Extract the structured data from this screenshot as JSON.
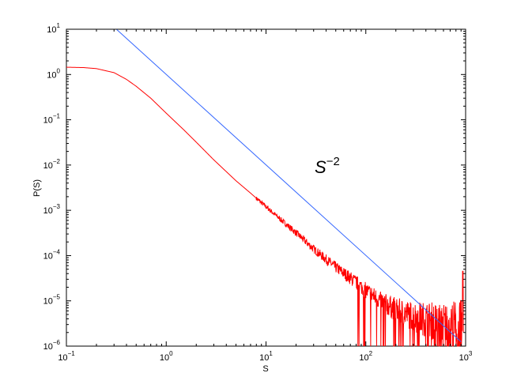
{
  "chart_data": {
    "type": "line",
    "xscale": "log",
    "yscale": "log",
    "xlim": [
      0.1,
      1000
    ],
    "ylim": [
      1e-06,
      10
    ],
    "xlabel": "S",
    "ylabel": "P(S)",
    "grid": false,
    "x_ticks": [
      {
        "base": "10",
        "exp": "−1"
      },
      {
        "base": "10",
        "exp": "0"
      },
      {
        "base": "10",
        "exp": "1"
      },
      {
        "base": "10",
        "exp": "2"
      },
      {
        "base": "10",
        "exp": "3"
      }
    ],
    "y_ticks": [
      {
        "base": "10",
        "exp": "−6"
      },
      {
        "base": "10",
        "exp": "−5"
      },
      {
        "base": "10",
        "exp": "−4"
      },
      {
        "base": "10",
        "exp": "−3"
      },
      {
        "base": "10",
        "exp": "−2"
      },
      {
        "base": "10",
        "exp": "−1"
      },
      {
        "base": "10",
        "exp": "0"
      },
      {
        "base": "10",
        "exp": "1"
      }
    ],
    "annotation": {
      "base": "S",
      "exp": "−2"
    },
    "series": [
      {
        "color": "#ff0000",
        "style": "noisy",
        "x": [
          0.1,
          0.15,
          0.2,
          0.3,
          0.4,
          0.5,
          0.7,
          1.0,
          1.5,
          2.0,
          3.0,
          5.0,
          7.0,
          10,
          15,
          20,
          30,
          50,
          70,
          100,
          150,
          200,
          300,
          500,
          700,
          950
        ],
        "y": [
          1.45,
          1.42,
          1.35,
          1.1,
          0.78,
          0.55,
          0.3,
          0.14,
          0.06,
          0.032,
          0.013,
          0.0045,
          0.0024,
          0.0012,
          0.00055,
          0.00032,
          0.00014,
          5.5e-05,
          3.2e-05,
          1.7e-05,
          9e-06,
          6.5e-06,
          4.5e-06,
          3.5e-06,
          3e-06,
          3e-06
        ]
      },
      {
        "color": "#3366ff",
        "style": "line",
        "x": [
          0.32,
          900
        ],
        "y": [
          9.8,
          1.25e-06
        ]
      }
    ]
  }
}
